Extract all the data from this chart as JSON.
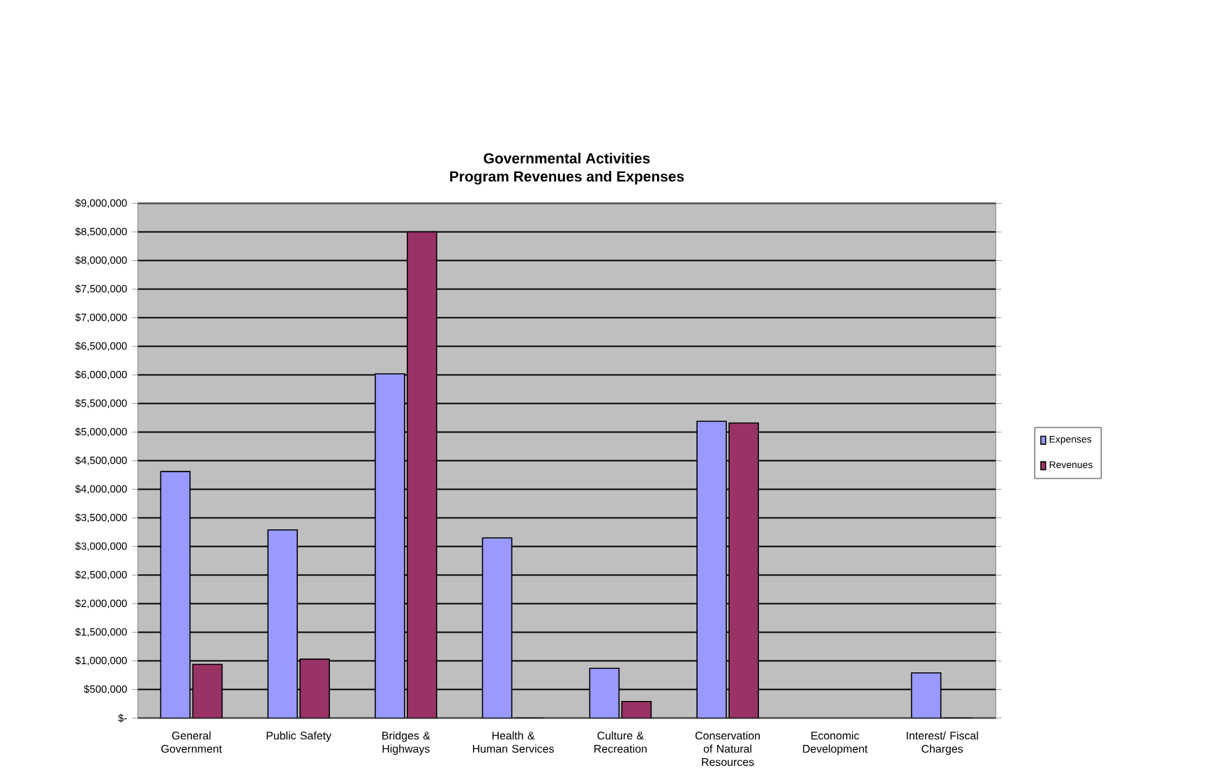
{
  "chart_data": {
    "type": "bar",
    "title": "Governmental Activities",
    "subtitle": "Program Revenues and Expenses",
    "categories": [
      "General Government",
      "Public Safety",
      "Bridges & Highways",
      "Health & Human Services",
      "Culture & Recreation",
      "Conservation of Natural Resources",
      "Economic Development",
      "Interest/ Fiscal Charges"
    ],
    "series": [
      {
        "name": "Expenses",
        "color": "#9999ff",
        "values": [
          4310000,
          3290000,
          6020000,
          3150000,
          870000,
          5190000,
          null,
          790000
        ]
      },
      {
        "name": "Revenues",
        "color": "#993366",
        "values": [
          940000,
          1030000,
          8500000,
          0,
          290000,
          5160000,
          null,
          0
        ]
      }
    ],
    "ylim": [
      0,
      9000000
    ],
    "yticks": [
      {
        "value": 0,
        "label": "$-"
      },
      {
        "value": 500000,
        "label": "$500,000"
      },
      {
        "value": 1000000,
        "label": "$1,000,000"
      },
      {
        "value": 1500000,
        "label": "$1,500,000"
      },
      {
        "value": 2000000,
        "label": "$2,000,000"
      },
      {
        "value": 2500000,
        "label": "$2,500,000"
      },
      {
        "value": 3000000,
        "label": "$3,000,000"
      },
      {
        "value": 3500000,
        "label": "$3,500,000"
      },
      {
        "value": 4000000,
        "label": "$4,000,000"
      },
      {
        "value": 4500000,
        "label": "$4,500,000"
      },
      {
        "value": 5000000,
        "label": "$5,000,000"
      },
      {
        "value": 5500000,
        "label": "$5,500,000"
      },
      {
        "value": 6000000,
        "label": "$6,000,000"
      },
      {
        "value": 6500000,
        "label": "$6,500,000"
      },
      {
        "value": 7000000,
        "label": "$7,000,000"
      },
      {
        "value": 7500000,
        "label": "$7,500,000"
      },
      {
        "value": 8000000,
        "label": "$8,000,000"
      },
      {
        "value": 8500000,
        "label": "$8,500,000"
      },
      {
        "value": 9000000,
        "label": "$9,000,000"
      }
    ],
    "grid": "y",
    "legend": "right"
  }
}
